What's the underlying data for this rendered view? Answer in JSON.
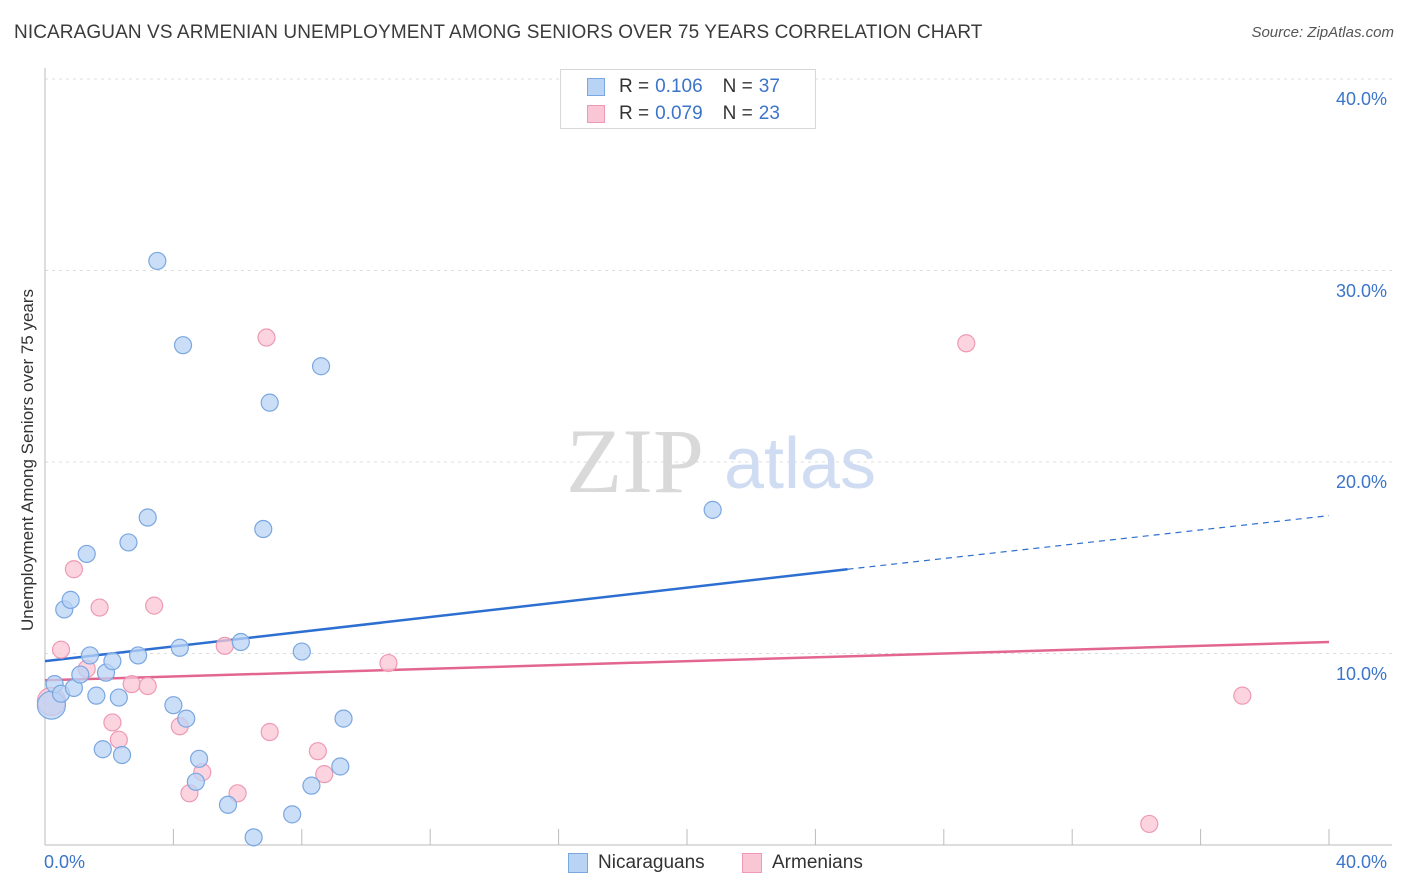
{
  "header": {
    "title": "NICARAGUAN VS ARMENIAN UNEMPLOYMENT AMONG SENIORS OVER 75 YEARS CORRELATION CHART",
    "source": "Source: ZipAtlas.com"
  },
  "legend_top": {
    "rows": [
      {
        "r_label": "R =",
        "r_value": "0.106",
        "n_label": "N =",
        "n_value": "37"
      },
      {
        "r_label": "R =",
        "r_value": "0.079",
        "n_label": "N =",
        "n_value": "23"
      }
    ]
  },
  "legend_bottom": {
    "items": [
      {
        "label": "Nicaraguans"
      },
      {
        "label": "Armenians"
      }
    ]
  },
  "watermark": {
    "zip": "ZIP",
    "atlas": "atlas"
  },
  "colors": {
    "blue_fill": "#b9d3f5",
    "blue_stroke": "#7aa7e0",
    "blue_line": "#2c6fd1",
    "pink_fill": "#f9c6d6",
    "pink_stroke": "#ee9ab5",
    "pink_line": "#e2668f",
    "tick_text": "#3b74c9",
    "grid": "#dddddd"
  },
  "chart_data": {
    "type": "scatter",
    "title": "NICARAGUAN VS ARMENIAN UNEMPLOYMENT AMONG SENIORS OVER 75 YEARS CORRELATION CHART",
    "xlabel": "",
    "ylabel": "Unemployment Among Seniors over 75 years",
    "xlim": [
      0,
      40
    ],
    "ylim": [
      0,
      40
    ],
    "x_tick_labels": [
      "0.0%",
      "40.0%"
    ],
    "y_ticks": [
      {
        "value": 10,
        "label": "10.0%"
      },
      {
        "value": 20,
        "label": "20.0%"
      },
      {
        "value": 30,
        "label": "30.0%"
      },
      {
        "value": 40,
        "label": "40.0%"
      }
    ],
    "series": [
      {
        "name": "Nicaraguans",
        "r": 0.106,
        "n": 37,
        "trend": {
          "x0": 0,
          "y0": 9.6,
          "x1": 25,
          "y1": 14.4,
          "dash_to_x": 40,
          "dash_to_y": 17.2
        },
        "points": [
          {
            "x": 0.2,
            "y": 7.3,
            "big": true
          },
          {
            "x": 0.3,
            "y": 8.4
          },
          {
            "x": 0.5,
            "y": 7.9
          },
          {
            "x": 0.6,
            "y": 12.3
          },
          {
            "x": 0.8,
            "y": 12.8
          },
          {
            "x": 0.9,
            "y": 8.2
          },
          {
            "x": 1.1,
            "y": 8.9
          },
          {
            "x": 1.3,
            "y": 15.2
          },
          {
            "x": 1.4,
            "y": 9.9
          },
          {
            "x": 1.6,
            "y": 7.8
          },
          {
            "x": 1.8,
            "y": 5.0
          },
          {
            "x": 1.9,
            "y": 9.0
          },
          {
            "x": 2.1,
            "y": 9.6
          },
          {
            "x": 2.3,
            "y": 7.7
          },
          {
            "x": 2.4,
            "y": 4.7
          },
          {
            "x": 2.6,
            "y": 15.8
          },
          {
            "x": 2.9,
            "y": 9.9
          },
          {
            "x": 3.2,
            "y": 17.1
          },
          {
            "x": 3.5,
            "y": 30.5
          },
          {
            "x": 4.0,
            "y": 7.3
          },
          {
            "x": 4.2,
            "y": 10.3
          },
          {
            "x": 4.3,
            "y": 26.1
          },
          {
            "x": 4.4,
            "y": 6.6
          },
          {
            "x": 4.7,
            "y": 3.3
          },
          {
            "x": 4.8,
            "y": 4.5
          },
          {
            "x": 5.7,
            "y": 2.1
          },
          {
            "x": 6.1,
            "y": 10.6
          },
          {
            "x": 6.5,
            "y": 0.4
          },
          {
            "x": 6.8,
            "y": 16.5
          },
          {
            "x": 7.0,
            "y": 23.1
          },
          {
            "x": 7.7,
            "y": 1.6
          },
          {
            "x": 8.0,
            "y": 10.1
          },
          {
            "x": 8.3,
            "y": 3.1
          },
          {
            "x": 8.6,
            "y": 25.0
          },
          {
            "x": 9.2,
            "y": 4.1
          },
          {
            "x": 9.3,
            "y": 6.6
          },
          {
            "x": 20.8,
            "y": 17.5
          }
        ]
      },
      {
        "name": "Armenians",
        "r": 0.079,
        "n": 23,
        "trend": {
          "x0": 0,
          "y0": 8.6,
          "x1": 40,
          "y1": 10.6
        },
        "points": [
          {
            "x": 0.2,
            "y": 7.5,
            "big": true
          },
          {
            "x": 0.5,
            "y": 10.2
          },
          {
            "x": 0.9,
            "y": 14.4
          },
          {
            "x": 1.3,
            "y": 9.2
          },
          {
            "x": 1.7,
            "y": 12.4
          },
          {
            "x": 2.1,
            "y": 6.4
          },
          {
            "x": 2.3,
            "y": 5.5
          },
          {
            "x": 2.7,
            "y": 8.4
          },
          {
            "x": 3.2,
            "y": 8.3
          },
          {
            "x": 3.4,
            "y": 12.5
          },
          {
            "x": 4.2,
            "y": 6.2
          },
          {
            "x": 4.5,
            "y": 2.7
          },
          {
            "x": 4.9,
            "y": 3.8
          },
          {
            "x": 5.6,
            "y": 10.4
          },
          {
            "x": 6.0,
            "y": 2.7
          },
          {
            "x": 6.9,
            "y": 26.5
          },
          {
            "x": 7.0,
            "y": 5.9
          },
          {
            "x": 8.5,
            "y": 4.9
          },
          {
            "x": 8.7,
            "y": 3.7
          },
          {
            "x": 10.7,
            "y": 9.5
          },
          {
            "x": 28.7,
            "y": 26.2
          },
          {
            "x": 34.4,
            "y": 1.1
          },
          {
            "x": 37.3,
            "y": 7.8
          }
        ]
      }
    ]
  }
}
